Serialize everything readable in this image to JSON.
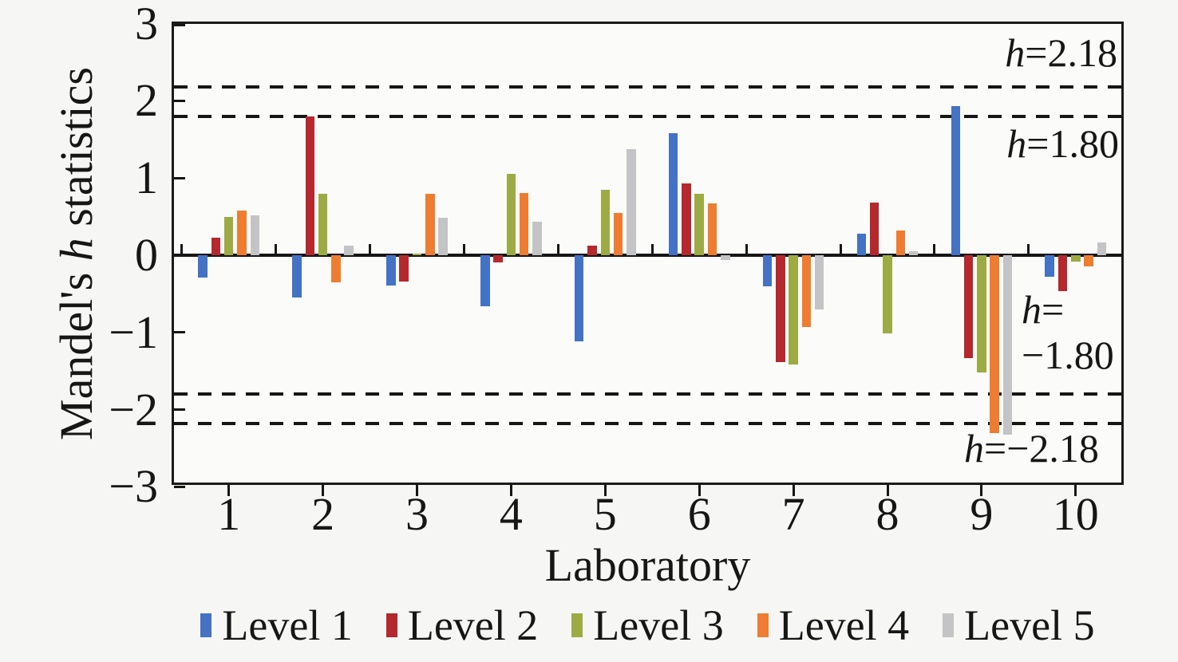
{
  "figure": {
    "y_title_prefix": "Mandel's ",
    "y_title_h": "h",
    "y_title_suffix": " statistics",
    "x_title": "Laboratory",
    "text_color": "#161616",
    "background": "#f6f6f4"
  },
  "annotations": {
    "h_char": "h",
    "top1_rest": "=2.18",
    "top2_rest": "=1.80",
    "mid_eq": "=",
    "mid_value": "−1.80",
    "bottom_rest": "=−2.18"
  },
  "chart_data": {
    "type": "bar",
    "title": "",
    "xlabel": "Laboratory",
    "ylabel": "Mandel's h statistics",
    "ylim": [
      -3,
      3
    ],
    "grid": false,
    "legend_position": "bottom",
    "y_ticks": [
      3,
      2,
      1,
      0,
      -1,
      -2,
      -3
    ],
    "y_tick_labels": [
      "3",
      "2",
      "1",
      "0",
      "−1",
      "−2",
      "−3"
    ],
    "categories": [
      "1",
      "2",
      "3",
      "4",
      "5",
      "6",
      "7",
      "8",
      "9",
      "10"
    ],
    "series": [
      {
        "name": "Level 1",
        "color": "#4472C4",
        "values": [
          -0.29,
          -0.55,
          -0.39,
          -0.66,
          -1.12,
          1.58,
          -0.4,
          0.28,
          1.93,
          -0.28
        ]
      },
      {
        "name": "Level 2",
        "color": "#B4282E",
        "values": [
          0.23,
          1.8,
          -0.34,
          -0.09,
          0.12,
          0.93,
          -1.38,
          0.68,
          -1.33,
          -0.46
        ]
      },
      {
        "name": "Level 3",
        "color": "#9DAB44",
        "values": [
          0.5,
          0.8,
          0.02,
          1.05,
          0.85,
          0.8,
          -1.41,
          -1.01,
          -1.52,
          -0.08
        ]
      },
      {
        "name": "Level 4",
        "color": "#EE7D31",
        "values": [
          0.58,
          -0.35,
          0.8,
          0.81,
          0.55,
          0.67,
          -0.93,
          0.32,
          -2.3,
          -0.14
        ]
      },
      {
        "name": "Level 5",
        "color": "#C4C4C6",
        "values": [
          0.52,
          0.12,
          0.49,
          0.43,
          1.37,
          -0.06,
          -0.7,
          0.05,
          -2.32,
          0.17
        ]
      }
    ],
    "reference_lines": [
      {
        "value": 2.18,
        "label": "h=2.18",
        "style": "dashed"
      },
      {
        "value": 1.8,
        "label": "h=1.80",
        "style": "dashed"
      },
      {
        "value": -1.8,
        "label": "h=−1.80",
        "style": "dashed"
      },
      {
        "value": -2.18,
        "label": "h=−2.18",
        "style": "dashed"
      }
    ]
  }
}
